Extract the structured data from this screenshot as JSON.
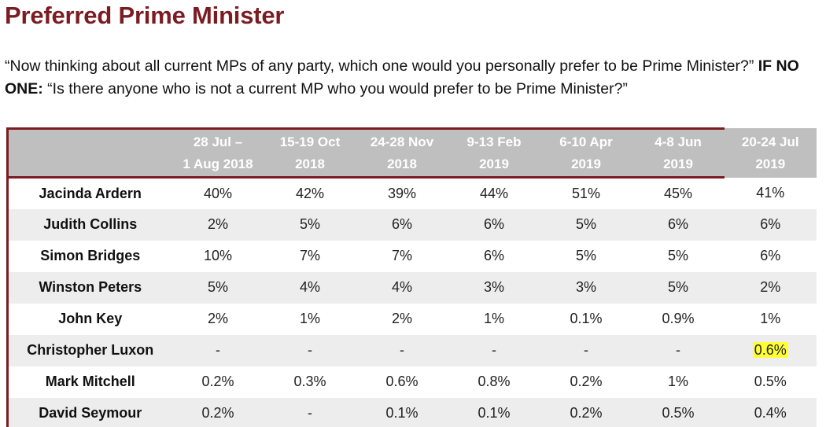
{
  "title": "Preferred Prime Minister",
  "question": {
    "part1": "“Now thinking about all current MPs of any party, which one would you personally prefer to be Prime Minister?” ",
    "bold": "IF NO ONE:",
    "part2": " “Is there anyone who is not a current MP who you would prefer to be Prime Minister?”"
  },
  "table": {
    "columns": [
      [
        "28 Jul –",
        "1 Aug 2018"
      ],
      [
        "15-19 Oct",
        "2018"
      ],
      [
        "24-28 Nov",
        "2018"
      ],
      [
        "9-13 Feb",
        "2019"
      ],
      [
        "6-10 Apr",
        "2019"
      ],
      [
        "4-8 Jun",
        "2019"
      ],
      [
        "20-24 Jul",
        "2019"
      ]
    ],
    "rows": [
      {
        "name": "Jacinda Ardern",
        "values": [
          "40%",
          "42%",
          "39%",
          "44%",
          "51%",
          "45%",
          "41%"
        ]
      },
      {
        "name": "Judith Collins",
        "values": [
          "2%",
          "5%",
          "6%",
          "6%",
          "5%",
          "6%",
          "6%"
        ]
      },
      {
        "name": "Simon Bridges",
        "values": [
          "10%",
          "7%",
          "7%",
          "6%",
          "5%",
          "5%",
          "6%"
        ]
      },
      {
        "name": "Winston Peters",
        "values": [
          "5%",
          "4%",
          "4%",
          "3%",
          "3%",
          "5%",
          "2%"
        ]
      },
      {
        "name": "John Key",
        "values": [
          "2%",
          "1%",
          "2%",
          "1%",
          "0.1%",
          "0.9%",
          "1%"
        ]
      },
      {
        "name": "Christopher Luxon",
        "values": [
          "-",
          "-",
          "-",
          "-",
          "-",
          "-",
          "0.6%"
        ]
      },
      {
        "name": "Mark Mitchell",
        "values": [
          "0.2%",
          "0.3%",
          "0.6%",
          "0.8%",
          "0.2%",
          "1%",
          "0.5%"
        ]
      },
      {
        "name": "David Seymour",
        "values": [
          "0.2%",
          "-",
          "0.1%",
          "0.1%",
          "0.2%",
          "0.5%",
          "0.4%"
        ]
      }
    ],
    "highlight": {
      "row": 5,
      "col": 6,
      "color": "#ffff33"
    },
    "accent_color": "#7b1c22",
    "header_bg": "#bfbfbf"
  }
}
